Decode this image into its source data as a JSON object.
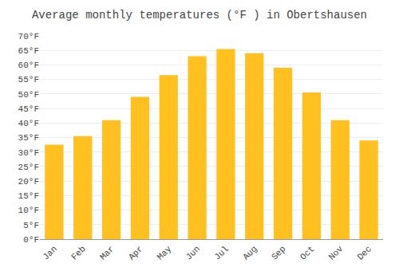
{
  "chart_data": {
    "type": "bar",
    "title": "Average monthly temperatures (°F ) in Obertshausen",
    "categories": [
      "Jan",
      "Feb",
      "Mar",
      "Apr",
      "May",
      "Jun",
      "Jul",
      "Aug",
      "Sep",
      "Oct",
      "Nov",
      "Dec"
    ],
    "values": [
      32.5,
      35.5,
      41.0,
      49.0,
      56.5,
      63.0,
      65.5,
      64.0,
      59.0,
      50.5,
      41.0,
      34.0
    ],
    "color": "#FFC020",
    "ylim": [
      0,
      70
    ],
    "yticks": [
      {
        "value": 0,
        "label": "0°F"
      },
      {
        "value": 5,
        "label": "5°F"
      },
      {
        "value": 10,
        "label": "10°F"
      },
      {
        "value": 15,
        "label": "15°F"
      },
      {
        "value": 20,
        "label": "20°F"
      },
      {
        "value": 25,
        "label": "25°F"
      },
      {
        "value": 30,
        "label": "30°F"
      },
      {
        "value": 35,
        "label": "35°F"
      },
      {
        "value": 40,
        "label": "40°F"
      },
      {
        "value": 45,
        "label": "45°F"
      },
      {
        "value": 50,
        "label": "50°F"
      },
      {
        "value": 55,
        "label": "55°F"
      },
      {
        "value": 60,
        "label": "60°F"
      },
      {
        "value": 65,
        "label": "65°F"
      },
      {
        "value": 70,
        "label": "70°F"
      }
    ],
    "grid": true
  }
}
